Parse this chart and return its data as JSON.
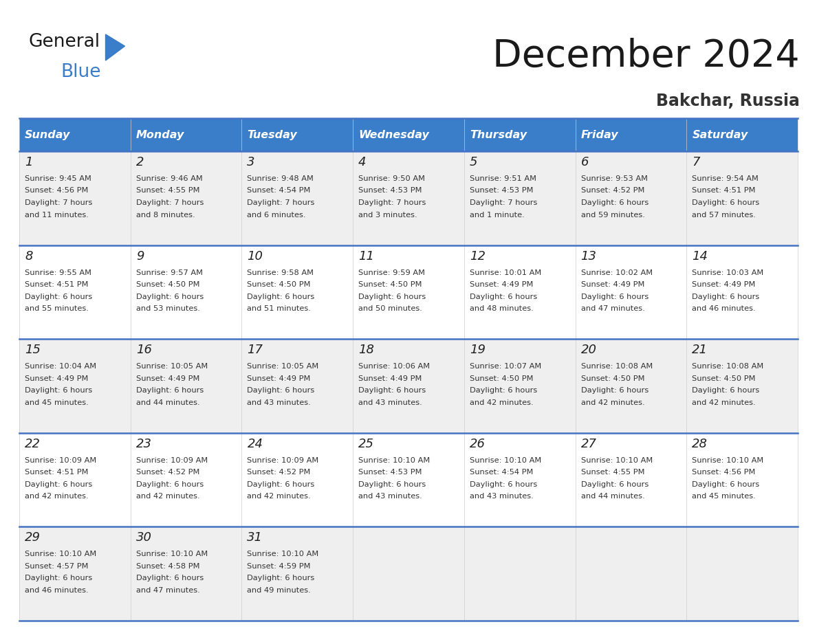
{
  "title": "December 2024",
  "subtitle": "Bakchar, Russia",
  "header_color": "#3A7DC9",
  "header_text_color": "#FFFFFF",
  "day_names": [
    "Sunday",
    "Monday",
    "Tuesday",
    "Wednesday",
    "Thursday",
    "Friday",
    "Saturday"
  ],
  "bg_color": "#FFFFFF",
  "cell_bg_even": "#EFEFEF",
  "cell_bg_odd": "#FFFFFF",
  "row_separator_color": "#4472C4",
  "calendar_data": [
    [
      {
        "day": "1",
        "sunrise": "9:45 AM",
        "sunset": "4:56 PM",
        "daylight1": "7 hours",
        "daylight2": "and 11 minutes."
      },
      {
        "day": "2",
        "sunrise": "9:46 AM",
        "sunset": "4:55 PM",
        "daylight1": "7 hours",
        "daylight2": "and 8 minutes."
      },
      {
        "day": "3",
        "sunrise": "9:48 AM",
        "sunset": "4:54 PM",
        "daylight1": "7 hours",
        "daylight2": "and 6 minutes."
      },
      {
        "day": "4",
        "sunrise": "9:50 AM",
        "sunset": "4:53 PM",
        "daylight1": "7 hours",
        "daylight2": "and 3 minutes."
      },
      {
        "day": "5",
        "sunrise": "9:51 AM",
        "sunset": "4:53 PM",
        "daylight1": "7 hours",
        "daylight2": "and 1 minute."
      },
      {
        "day": "6",
        "sunrise": "9:53 AM",
        "sunset": "4:52 PM",
        "daylight1": "6 hours",
        "daylight2": "and 59 minutes."
      },
      {
        "day": "7",
        "sunrise": "9:54 AM",
        "sunset": "4:51 PM",
        "daylight1": "6 hours",
        "daylight2": "and 57 minutes."
      }
    ],
    [
      {
        "day": "8",
        "sunrise": "9:55 AM",
        "sunset": "4:51 PM",
        "daylight1": "6 hours",
        "daylight2": "and 55 minutes."
      },
      {
        "day": "9",
        "sunrise": "9:57 AM",
        "sunset": "4:50 PM",
        "daylight1": "6 hours",
        "daylight2": "and 53 minutes."
      },
      {
        "day": "10",
        "sunrise": "9:58 AM",
        "sunset": "4:50 PM",
        "daylight1": "6 hours",
        "daylight2": "and 51 minutes."
      },
      {
        "day": "11",
        "sunrise": "9:59 AM",
        "sunset": "4:50 PM",
        "daylight1": "6 hours",
        "daylight2": "and 50 minutes."
      },
      {
        "day": "12",
        "sunrise": "10:01 AM",
        "sunset": "4:49 PM",
        "daylight1": "6 hours",
        "daylight2": "and 48 minutes."
      },
      {
        "day": "13",
        "sunrise": "10:02 AM",
        "sunset": "4:49 PM",
        "daylight1": "6 hours",
        "daylight2": "and 47 minutes."
      },
      {
        "day": "14",
        "sunrise": "10:03 AM",
        "sunset": "4:49 PM",
        "daylight1": "6 hours",
        "daylight2": "and 46 minutes."
      }
    ],
    [
      {
        "day": "15",
        "sunrise": "10:04 AM",
        "sunset": "4:49 PM",
        "daylight1": "6 hours",
        "daylight2": "and 45 minutes."
      },
      {
        "day": "16",
        "sunrise": "10:05 AM",
        "sunset": "4:49 PM",
        "daylight1": "6 hours",
        "daylight2": "and 44 minutes."
      },
      {
        "day": "17",
        "sunrise": "10:05 AM",
        "sunset": "4:49 PM",
        "daylight1": "6 hours",
        "daylight2": "and 43 minutes."
      },
      {
        "day": "18",
        "sunrise": "10:06 AM",
        "sunset": "4:49 PM",
        "daylight1": "6 hours",
        "daylight2": "and 43 minutes."
      },
      {
        "day": "19",
        "sunrise": "10:07 AM",
        "sunset": "4:50 PM",
        "daylight1": "6 hours",
        "daylight2": "and 42 minutes."
      },
      {
        "day": "20",
        "sunrise": "10:08 AM",
        "sunset": "4:50 PM",
        "daylight1": "6 hours",
        "daylight2": "and 42 minutes."
      },
      {
        "day": "21",
        "sunrise": "10:08 AM",
        "sunset": "4:50 PM",
        "daylight1": "6 hours",
        "daylight2": "and 42 minutes."
      }
    ],
    [
      {
        "day": "22",
        "sunrise": "10:09 AM",
        "sunset": "4:51 PM",
        "daylight1": "6 hours",
        "daylight2": "and 42 minutes."
      },
      {
        "day": "23",
        "sunrise": "10:09 AM",
        "sunset": "4:52 PM",
        "daylight1": "6 hours",
        "daylight2": "and 42 minutes."
      },
      {
        "day": "24",
        "sunrise": "10:09 AM",
        "sunset": "4:52 PM",
        "daylight1": "6 hours",
        "daylight2": "and 42 minutes."
      },
      {
        "day": "25",
        "sunrise": "10:10 AM",
        "sunset": "4:53 PM",
        "daylight1": "6 hours",
        "daylight2": "and 43 minutes."
      },
      {
        "day": "26",
        "sunrise": "10:10 AM",
        "sunset": "4:54 PM",
        "daylight1": "6 hours",
        "daylight2": "and 43 minutes."
      },
      {
        "day": "27",
        "sunrise": "10:10 AM",
        "sunset": "4:55 PM",
        "daylight1": "6 hours",
        "daylight2": "and 44 minutes."
      },
      {
        "day": "28",
        "sunrise": "10:10 AM",
        "sunset": "4:56 PM",
        "daylight1": "6 hours",
        "daylight2": "and 45 minutes."
      }
    ],
    [
      {
        "day": "29",
        "sunrise": "10:10 AM",
        "sunset": "4:57 PM",
        "daylight1": "6 hours",
        "daylight2": "and 46 minutes."
      },
      {
        "day": "30",
        "sunrise": "10:10 AM",
        "sunset": "4:58 PM",
        "daylight1": "6 hours",
        "daylight2": "and 47 minutes."
      },
      {
        "day": "31",
        "sunrise": "10:10 AM",
        "sunset": "4:59 PM",
        "daylight1": "6 hours",
        "daylight2": "and 49 minutes."
      },
      null,
      null,
      null,
      null
    ]
  ]
}
